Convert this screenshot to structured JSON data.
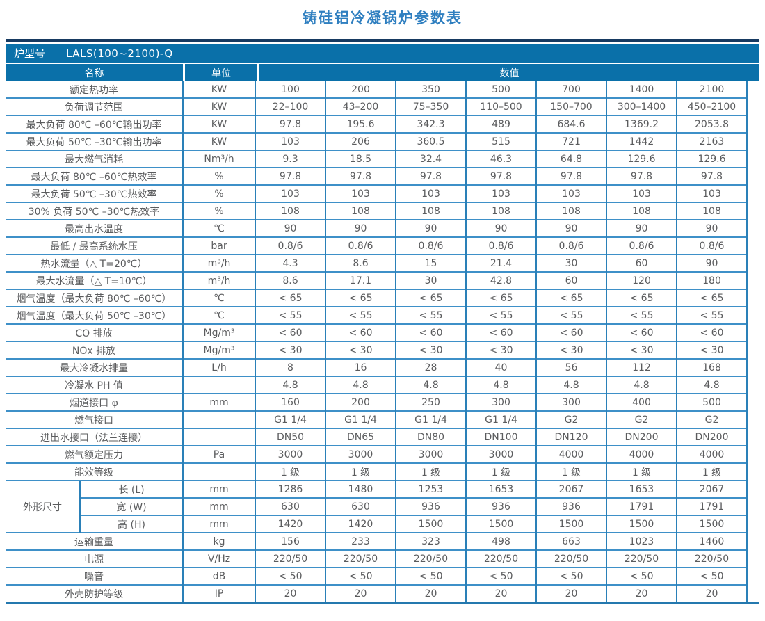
{
  "title": "铸硅铝冷凝锅炉参数表",
  "model_bar": {
    "label": "炉型号",
    "model": "LALS(100~2100)-Q"
  },
  "columns": {
    "name": "名称",
    "unit": "单位",
    "value": "数值"
  },
  "colors": {
    "header_blue": "#0a70a9",
    "navy_bar": "#173a61",
    "border_blue": "#2a80b8",
    "row_line_blue": "#3e90c8",
    "title_blue": "#2f7fc0",
    "text_gray": "#5b5c5e"
  },
  "rows": [
    {
      "name": "额定热功率",
      "unit": "KW",
      "values": [
        "100",
        "200",
        "350",
        "500",
        "700",
        "1400",
        "2100"
      ]
    },
    {
      "name": "负荷调节范围",
      "unit": "KW",
      "values": [
        "22–100",
        "43–200",
        "75–350",
        "110–500",
        "150–700",
        "300–1400",
        "450–2100"
      ]
    },
    {
      "name": "最大负荷 80℃ –60℃输出功率",
      "unit": "KW",
      "values": [
        "97.8",
        "195.6",
        "342.3",
        "489",
        "684.6",
        "1369.2",
        "2053.8"
      ]
    },
    {
      "name": "最大负荷 50℃ –30℃输出功率",
      "unit": "KW",
      "values": [
        "103",
        "206",
        "360.5",
        "515",
        "721",
        "1442",
        "2163"
      ]
    },
    {
      "name": "最大燃气消耗",
      "unit": "Nm³/h",
      "values": [
        "9.3",
        "18.5",
        "32.4",
        "46.3",
        "64.8",
        "129.6",
        "129.6"
      ]
    },
    {
      "name": "最大负荷 80℃ –60℃热效率",
      "unit": "%",
      "values": [
        "97.8",
        "97.8",
        "97.8",
        "97.8",
        "97.8",
        "97.8",
        "97.8"
      ]
    },
    {
      "name": "最大负荷 50℃ –30℃热效率",
      "unit": "%",
      "values": [
        "103",
        "103",
        "103",
        "103",
        "103",
        "103",
        "103"
      ]
    },
    {
      "name": "30% 负荷 50℃ –30℃热效率",
      "unit": "%",
      "values": [
        "108",
        "108",
        "108",
        "108",
        "108",
        "108",
        "108"
      ]
    },
    {
      "name": "最高出水温度",
      "unit": "℃",
      "values": [
        "90",
        "90",
        "90",
        "90",
        "90",
        "90",
        "90"
      ]
    },
    {
      "name": "最低 / 最高系统水压",
      "unit": "bar",
      "values": [
        "0.8/6",
        "0.8/6",
        "0.8/6",
        "0.8/6",
        "0.8/6",
        "0.8/6",
        "0.8/6"
      ]
    },
    {
      "name": "热水流量（△ T=20℃）",
      "unit": "m³/h",
      "values": [
        "4.3",
        "8.6",
        "15",
        "21.4",
        "30",
        "60",
        "90"
      ]
    },
    {
      "name": "最大水流量（△ T=10℃）",
      "unit": "m³/h",
      "values": [
        "8.6",
        "17.1",
        "30",
        "42.8",
        "60",
        "120",
        "180"
      ]
    },
    {
      "name": "烟气温度（最大负荷 80℃ –60℃）",
      "unit": "℃",
      "values": [
        "< 65",
        "< 65",
        "< 65",
        "< 65",
        "< 65",
        "< 65",
        "< 65"
      ]
    },
    {
      "name": "烟气温度（最大负荷 50℃ –30℃）",
      "unit": "℃",
      "values": [
        "< 55",
        "< 55",
        "< 55",
        "< 55",
        "< 55",
        "< 55",
        "< 55"
      ]
    },
    {
      "name": "CO 排放",
      "unit": "Mg/m³",
      "values": [
        "< 60",
        "< 60",
        "< 60",
        "< 60",
        "< 60",
        "< 60",
        "< 60"
      ]
    },
    {
      "name": "NOx 排放",
      "unit": "Mg/m³",
      "values": [
        "< 30",
        "< 30",
        "< 30",
        "< 30",
        "< 30",
        "< 30",
        "< 30"
      ]
    },
    {
      "name": "最大冷凝水排量",
      "unit": "L/h",
      "values": [
        "8",
        "16",
        "28",
        "40",
        "56",
        "112",
        "168"
      ]
    },
    {
      "name": "冷凝水 PH 值",
      "unit": "",
      "values": [
        "4.8",
        "4.8",
        "4.8",
        "4.8",
        "4.8",
        "4.8",
        "4.8"
      ]
    },
    {
      "name": "烟道接口 φ",
      "unit": "mm",
      "values": [
        "160",
        "200",
        "250",
        "300",
        "300",
        "400",
        "500"
      ]
    },
    {
      "name": "燃气接口",
      "unit": "",
      "values": [
        "G1 1/4",
        "G1 1/4",
        "G1 1/4",
        "G1 1/4",
        "G2",
        "G2",
        "G2"
      ]
    },
    {
      "name": "进出水接口（法兰连接）",
      "unit": "",
      "values": [
        "DN50",
        "DN65",
        "DN80",
        "DN100",
        "DN120",
        "DN200",
        "DN200"
      ]
    },
    {
      "name": "燃气额定压力",
      "unit": "Pa",
      "values": [
        "3000",
        "3000",
        "3000",
        "3000",
        "4000",
        "4000",
        "4000"
      ]
    },
    {
      "name": "能效等级",
      "unit": "",
      "values": [
        "1 级",
        "1 级",
        "1 级",
        "1 级",
        "1 级",
        "1 级",
        "1 级"
      ]
    },
    {
      "group": "外形尺寸",
      "group_span": 3,
      "name": "长 (L)",
      "unit": "mm",
      "values": [
        "1286",
        "1480",
        "1253",
        "1653",
        "2067",
        "1653",
        "2067"
      ]
    },
    {
      "in_group": true,
      "name": "宽 (W)",
      "unit": "mm",
      "values": [
        "630",
        "630",
        "936",
        "936",
        "936",
        "1791",
        "1791"
      ]
    },
    {
      "in_group": true,
      "name": "高 (H)",
      "unit": "mm",
      "values": [
        "1420",
        "1420",
        "1500",
        "1500",
        "1500",
        "1500",
        "1500"
      ]
    },
    {
      "name": "运输重量",
      "unit": "kg",
      "values": [
        "156",
        "233",
        "323",
        "498",
        "663",
        "1023",
        "1460"
      ]
    },
    {
      "name": "电源",
      "unit": "V/Hz",
      "values": [
        "220/50",
        "220/50",
        "220/50",
        "220/50",
        "220/50",
        "220/50",
        "220/50"
      ]
    },
    {
      "name": "噪音",
      "unit": "dB",
      "values": [
        "< 50",
        "< 50",
        "< 50",
        "< 50",
        "< 50",
        "< 50",
        "< 50"
      ]
    },
    {
      "name": "外壳防护等级",
      "unit": "IP",
      "values": [
        "20",
        "20",
        "20",
        "20",
        "20",
        "20",
        "20"
      ]
    }
  ]
}
